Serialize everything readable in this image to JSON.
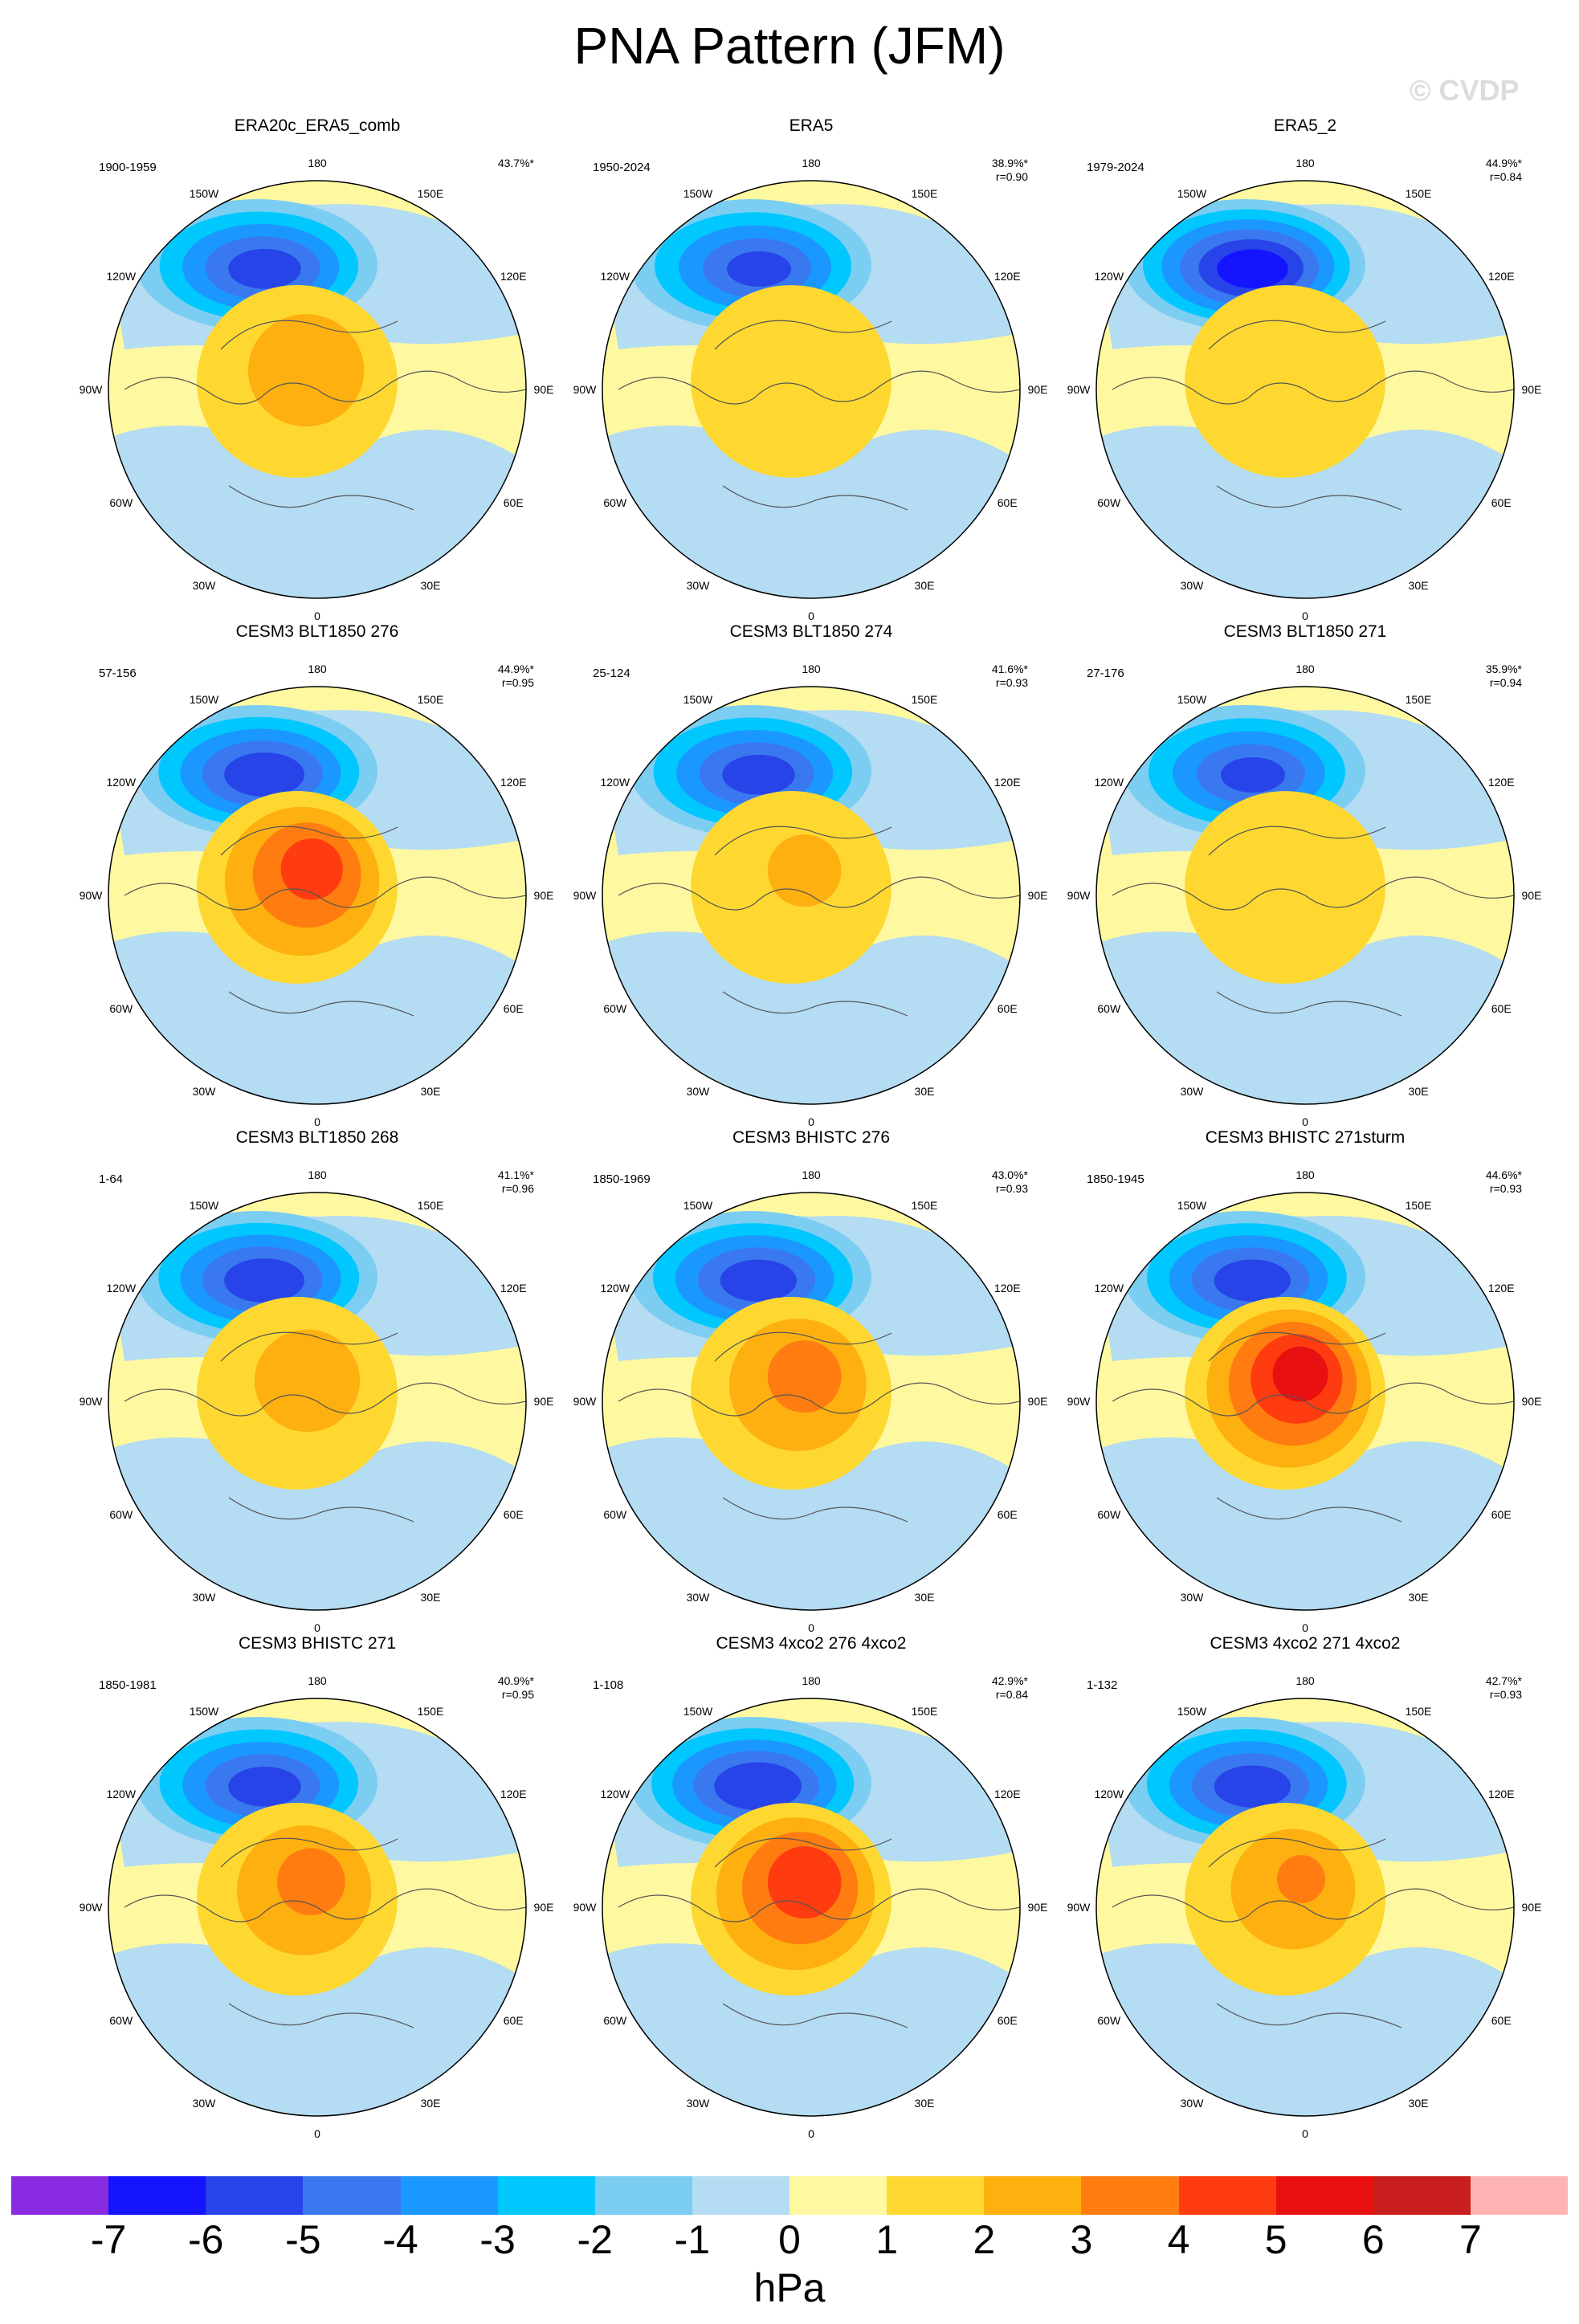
{
  "title": "PNA Pattern (JFM)",
  "watermark": "© CVDP",
  "lon_labels": [
    "180",
    "150E",
    "120E",
    "90E",
    "60E",
    "30E",
    "0",
    "30W",
    "60W",
    "90W",
    "120W",
    "150W"
  ],
  "panels": [
    {
      "title": "ERA20c_ERA5_comb",
      "years": "1900-1959",
      "pct": "43.7%*",
      "r": "",
      "blue_center": -5.2,
      "red_center": 2.8,
      "style": "obs1"
    },
    {
      "title": "ERA5",
      "years": "1950-2024",
      "pct": "38.9%*",
      "r": "r=0.90",
      "blue_center": -5.0,
      "red_center": 1.8,
      "style": "obs2"
    },
    {
      "title": "ERA5_2",
      "years": "1979-2024",
      "pct": "44.9%*",
      "r": "r=0.84",
      "blue_center": -6.2,
      "red_center": 1.6,
      "style": "obs3"
    },
    {
      "title": "CESM3 BLT1850 276",
      "years": "57-156",
      "pct": "44.9%*",
      "r": "r=0.95",
      "blue_center": -5.4,
      "red_center": 4.3,
      "style": "m1"
    },
    {
      "title": "CESM3 BLT1850 274",
      "years": "25-124",
      "pct": "41.6%*",
      "r": "r=0.93",
      "blue_center": -5.2,
      "red_center": 2.2,
      "style": "m2"
    },
    {
      "title": "CESM3 BLT1850 271",
      "years": "27-176",
      "pct": "35.9%*",
      "r": "r=0.94",
      "blue_center": -5.0,
      "red_center": 1.9,
      "style": "m3"
    },
    {
      "title": "CESM3 BLT1850 268",
      "years": "1-64",
      "pct": "41.1%*",
      "r": "r=0.96",
      "blue_center": -5.4,
      "red_center": 2.6,
      "style": "m4"
    },
    {
      "title": "CESM3 BHISTC 276",
      "years": "1850-1969",
      "pct": "43.0%*",
      "r": "r=0.93",
      "blue_center": -5.3,
      "red_center": 3.4,
      "style": "m5"
    },
    {
      "title": "CESM3 BHISTC 271sturm",
      "years": "1850-1945",
      "pct": "44.6%*",
      "r": "r=0.93",
      "blue_center": -5.3,
      "red_center": 5.2,
      "style": "m6"
    },
    {
      "title": "CESM3 BHISTC 271",
      "years": "1850-1981",
      "pct": "40.9%*",
      "r": "r=0.95",
      "blue_center": -5.2,
      "red_center": 3.3,
      "style": "m7"
    },
    {
      "title": "CESM3 4xco2 276 4xco2",
      "years": "1-108",
      "pct": "42.9%*",
      "r": "r=0.84",
      "blue_center": -5.6,
      "red_center": 4.6,
      "style": "m8"
    },
    {
      "title": "CESM3 4xco2 271 4xco2",
      "years": "1-132",
      "pct": "42.7%*",
      "r": "r=0.93",
      "blue_center": -5.3,
      "red_center": 3.0,
      "style": "m9"
    }
  ],
  "colorbar": {
    "colors": [
      "#8a2be2",
      "#1414ff",
      "#2744e8",
      "#3a78f0",
      "#1a98ff",
      "#00c8ff",
      "#7ccdf2",
      "#b4dcf2",
      "#fef8a0",
      "#fed830",
      "#fdb010",
      "#ff7d10",
      "#ff3c10",
      "#e81010",
      "#c81e1e",
      "#ffb4b4"
    ],
    "ticks": [
      "-7",
      "-6",
      "-5",
      "-4",
      "-3",
      "-2",
      "-1",
      "0",
      "1",
      "2",
      "3",
      "4",
      "5",
      "6",
      "7"
    ],
    "unit": "hPa"
  }
}
